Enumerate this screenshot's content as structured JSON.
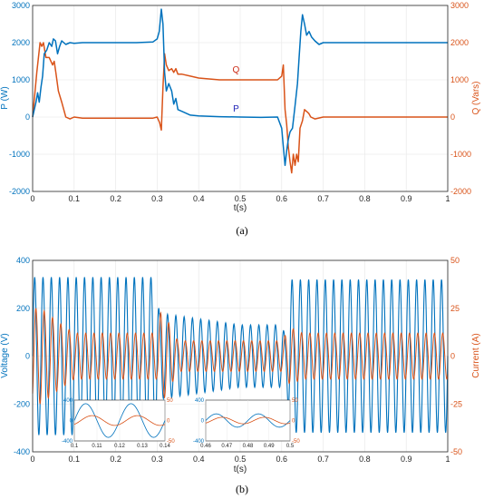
{
  "colors": {
    "blue": "#0072BD",
    "orange": "#D95319",
    "navy": "#1f22b5",
    "red": "#cc2a14",
    "grid": "#e6e6e6",
    "axis": "#262626"
  },
  "chart_data": [
    {
      "type": "line",
      "caption": "(a)",
      "xlabel": "t(s)",
      "ylabel_left": "P (W)",
      "ylabel_right": "Q (Vars)",
      "xlim": [
        0,
        1
      ],
      "ylim": [
        -2000,
        3000
      ],
      "grid": true,
      "x_ticks": [
        "0",
        "0.1",
        "0.2",
        "0.3",
        "0.4",
        "0.5",
        "0.6",
        "0.7",
        "0.8",
        "0.9",
        "1"
      ],
      "y_ticks_left": [
        "3000",
        "2000",
        "1000",
        "0",
        "-1000",
        "-2000"
      ],
      "y_ticks_right": [
        "3000",
        "2000",
        "1000",
        "0",
        "-1000",
        "-2000"
      ],
      "annotations": [
        {
          "text": "Q",
          "x": 0.49,
          "y": 1200
        },
        {
          "text": "P",
          "x": 0.49,
          "y": 150
        }
      ],
      "series": [
        {
          "label": "P",
          "axis": "left",
          "color": "#0072BD",
          "x": [
            0,
            0.008,
            0.012,
            0.016,
            0.02,
            0.024,
            0.028,
            0.034,
            0.04,
            0.046,
            0.05,
            0.055,
            0.06,
            0.065,
            0.07,
            0.08,
            0.09,
            0.1,
            0.12,
            0.15,
            0.2,
            0.25,
            0.29,
            0.3,
            0.305,
            0.31,
            0.314,
            0.318,
            0.322,
            0.328,
            0.335,
            0.34,
            0.345,
            0.35,
            0.36,
            0.38,
            0.4,
            0.45,
            0.5,
            0.55,
            0.59,
            0.6,
            0.604,
            0.608,
            0.612,
            0.616,
            0.62,
            0.626,
            0.632,
            0.638,
            0.642,
            0.646,
            0.65,
            0.655,
            0.66,
            0.666,
            0.672,
            0.68,
            0.69,
            0.7,
            0.72,
            0.75,
            0.8,
            0.85,
            0.9,
            0.95,
            1.0
          ],
          "y": [
            0,
            400,
            650,
            400,
            800,
            1100,
            1700,
            1800,
            2000,
            1900,
            2100,
            2050,
            1700,
            1900,
            2050,
            1950,
            2000,
            1980,
            2000,
            2000,
            2000,
            2000,
            2020,
            2100,
            2300,
            2900,
            2500,
            1200,
            700,
            900,
            700,
            350,
            500,
            200,
            150,
            50,
            30,
            10,
            0,
            -10,
            0,
            -300,
            -800,
            -1300,
            -900,
            -600,
            -400,
            -300,
            300,
            900,
            1600,
            2300,
            2750,
            2500,
            2200,
            2300,
            2150,
            2050,
            1950,
            2000,
            2000,
            2000,
            2000,
            2000,
            2000,
            2000,
            2000
          ]
        },
        {
          "label": "Q",
          "axis": "right",
          "color": "#D95319",
          "x": [
            0,
            0.006,
            0.01,
            0.014,
            0.018,
            0.022,
            0.026,
            0.032,
            0.04,
            0.048,
            0.052,
            0.056,
            0.062,
            0.07,
            0.08,
            0.09,
            0.1,
            0.12,
            0.2,
            0.29,
            0.3,
            0.306,
            0.31,
            0.314,
            0.318,
            0.322,
            0.328,
            0.335,
            0.34,
            0.345,
            0.35,
            0.36,
            0.38,
            0.4,
            0.45,
            0.5,
            0.55,
            0.59,
            0.6,
            0.604,
            0.608,
            0.612,
            0.616,
            0.62,
            0.624,
            0.628,
            0.632,
            0.636,
            0.64,
            0.644,
            0.65,
            0.655,
            0.66,
            0.665,
            0.67,
            0.68,
            0.7,
            0.75,
            0.8,
            0.9,
            1.0
          ],
          "y": [
            0,
            700,
            1200,
            1600,
            2000,
            1900,
            2000,
            1600,
            1600,
            1400,
            1500,
            1200,
            700,
            400,
            0,
            -50,
            0,
            -30,
            -30,
            -30,
            0,
            -150,
            -350,
            800,
            1700,
            1400,
            1250,
            1300,
            1200,
            1300,
            1150,
            1150,
            1100,
            1050,
            1000,
            1000,
            1000,
            1000,
            1100,
            1400,
            200,
            -200,
            -800,
            -1200,
            -1500,
            -1000,
            -1300,
            -1000,
            -1200,
            -300,
            -100,
            200,
            150,
            100,
            0,
            -50,
            0,
            0,
            0,
            0,
            0
          ]
        }
      ]
    },
    {
      "type": "line",
      "caption": "(b)",
      "xlabel": "t(s)",
      "ylabel_left": "Voltage (V)",
      "ylabel_right": "Current (A)",
      "xlim": [
        0,
        1
      ],
      "ylim": [
        -400,
        400
      ],
      "ylim_right": [
        -50,
        50
      ],
      "grid": true,
      "x_ticks": [
        "0",
        "0.1",
        "0.2",
        "0.3",
        "0.4",
        "0.5",
        "0.6",
        "0.7",
        "0.8",
        "0.9",
        "1"
      ],
      "y_ticks_left": [
        "400",
        "200",
        "0",
        "-200",
        "-400"
      ],
      "y_ticks_right": [
        "50",
        "25",
        "0",
        "-25",
        "-50"
      ],
      "series": [
        {
          "label": "Voltage",
          "axis": "left",
          "color": "#0072BD",
          "frequency_hz": 50,
          "amplitude_x": [
            0,
            0.3,
            0.305,
            0.5,
            0.6,
            0.61,
            0.62,
            1.0
          ],
          "amplitude_y": [
            330,
            330,
            180,
            130,
            130,
            80,
            320,
            320
          ]
        },
        {
          "label": "Current",
          "axis": "right",
          "color": "#D95319",
          "frequency_hz": 50,
          "amplitude_x": [
            0,
            0.02,
            0.06,
            0.1,
            0.3,
            0.31,
            0.35,
            0.6,
            0.62,
            0.65,
            1.0
          ],
          "amplitude_y": [
            25,
            25,
            18,
            12,
            12,
            25,
            8,
            8,
            15,
            12,
            12
          ]
        }
      ],
      "insets": [
        {
          "x_ticks": [
            "0.1",
            "0.11",
            "0.12",
            "0.13",
            "0.14"
          ],
          "y_ticks_left": [
            "400",
            "0",
            "-400"
          ],
          "y_ticks_right": [
            "50",
            "0",
            "-50"
          ]
        },
        {
          "x_ticks": [
            "0.46",
            "0.47",
            "0.48",
            "0.49",
            "0.5"
          ],
          "y_ticks_left": [
            "400",
            "0",
            "-400"
          ],
          "y_ticks_right": [
            "50",
            "0",
            "-50"
          ]
        }
      ]
    }
  ]
}
